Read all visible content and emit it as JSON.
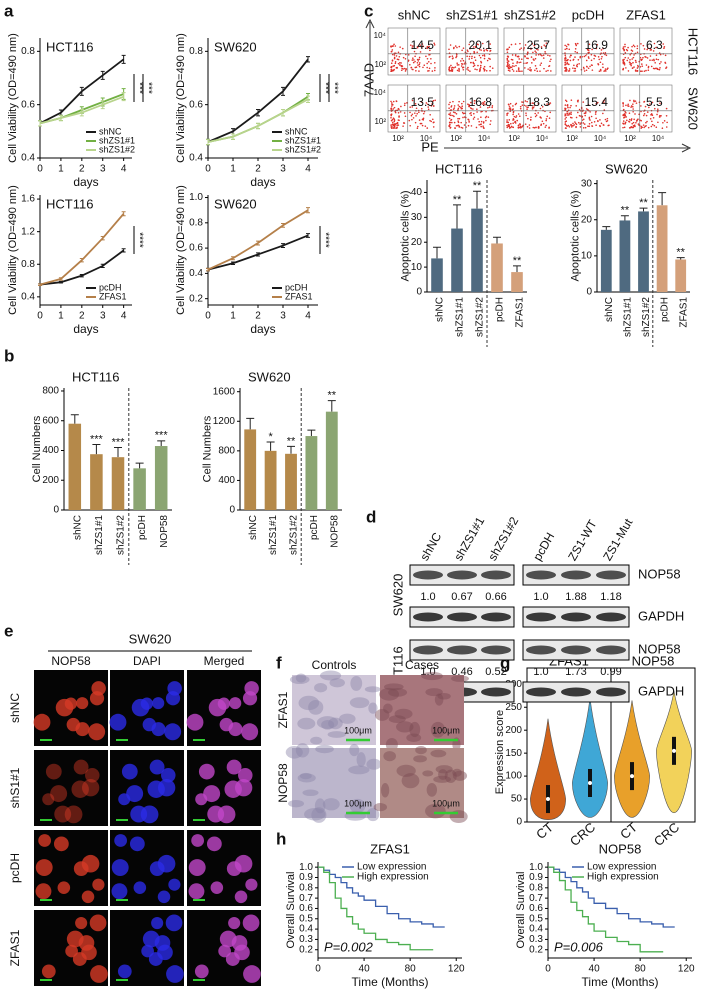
{
  "panel_labels": [
    "a",
    "b",
    "c",
    "d",
    "e",
    "f",
    "g",
    "h"
  ],
  "chart_data": [
    {
      "type": "line",
      "title": "HCT116",
      "y_label": "Cell Viability (OD=490 nm)",
      "x_label": "days",
      "x": [
        0,
        1,
        2,
        3,
        4
      ],
      "xlim": [
        0,
        4.4
      ],
      "xticks": [
        0,
        1,
        2,
        3,
        4
      ],
      "ylim": [
        0.4,
        0.85
      ],
      "yticks": [
        0.4,
        0.6,
        0.8
      ],
      "legend": "lower right",
      "annotations": [
        "***",
        "***"
      ],
      "series": [
        {
          "name": "shNC",
          "color": "#1a1a1a",
          "values": [
            0.53,
            0.57,
            0.65,
            0.71,
            0.77
          ],
          "errors": [
            0.01,
            0.01,
            0.015,
            0.015,
            0.015
          ]
        },
        {
          "name": "shZS1#1",
          "color": "#72b043",
          "values": [
            0.53,
            0.55,
            0.58,
            0.61,
            0.64
          ],
          "errors": [
            0.01,
            0.01,
            0.012,
            0.015,
            0.02
          ]
        },
        {
          "name": "shZS1#2",
          "color": "#b8d48c",
          "values": [
            0.53,
            0.55,
            0.57,
            0.6,
            0.63
          ],
          "errors": [
            0.01,
            0.01,
            0.012,
            0.015,
            0.015
          ]
        }
      ]
    },
    {
      "type": "line",
      "title": "SW620",
      "y_label": "Cell Viability (OD=490 nm)",
      "x_label": "days",
      "x": [
        0,
        1,
        2,
        3,
        4
      ],
      "xlim": [
        0,
        4.4
      ],
      "xticks": [
        0,
        1,
        2,
        3,
        4
      ],
      "ylim": [
        0.4,
        0.85
      ],
      "yticks": [
        0.4,
        0.6,
        0.8
      ],
      "legend": "lower right",
      "annotations": [
        "***",
        "***"
      ],
      "series": [
        {
          "name": "shNC",
          "color": "#1a1a1a",
          "values": [
            0.46,
            0.5,
            0.57,
            0.65,
            0.77
          ],
          "errors": [
            0.01,
            0.01,
            0.012,
            0.015,
            0.01
          ]
        },
        {
          "name": "shZS1#1",
          "color": "#72b043",
          "values": [
            0.46,
            0.48,
            0.52,
            0.57,
            0.63
          ],
          "errors": [
            0.01,
            0.01,
            0.01,
            0.012,
            0.012
          ]
        },
        {
          "name": "shZS1#2",
          "color": "#b8d48c",
          "values": [
            0.46,
            0.48,
            0.52,
            0.57,
            0.62
          ],
          "errors": [
            0.01,
            0.01,
            0.01,
            0.012,
            0.012
          ]
        }
      ]
    },
    {
      "type": "line",
      "title": "HCT116",
      "y_label": "Cell Viability (OD=490 nm)",
      "x_label": "days",
      "x": [
        0,
        1,
        2,
        3,
        4
      ],
      "xlim": [
        0,
        4.4
      ],
      "xticks": [
        0,
        1,
        2,
        3,
        4
      ],
      "ylim": [
        0.3,
        1.65
      ],
      "yticks": [
        0.4,
        0.8,
        1.2,
        1.6
      ],
      "legend": "lower right",
      "annotations": [
        "****"
      ],
      "series": [
        {
          "name": "pcDH",
          "color": "#1a1a1a",
          "values": [
            0.55,
            0.58,
            0.66,
            0.78,
            0.97
          ],
          "errors": [
            0.01,
            0.01,
            0.015,
            0.02,
            0.02
          ]
        },
        {
          "name": "ZFAS1",
          "color": "#b5804a",
          "values": [
            0.55,
            0.62,
            0.85,
            1.12,
            1.42
          ],
          "errors": [
            0.01,
            0.015,
            0.02,
            0.02,
            0.025
          ]
        }
      ]
    },
    {
      "type": "line",
      "title": "SW620",
      "y_label": "Cell Viability (OD=490 nm)",
      "x_label": "days",
      "x": [
        0,
        1,
        2,
        3,
        4
      ],
      "xlim": [
        0,
        4.4
      ],
      "xticks": [
        0,
        1,
        2,
        3,
        4
      ],
      "ylim": [
        0.15,
        1.02
      ],
      "yticks": [
        0.2,
        0.4,
        0.6,
        0.8,
        {
          "value": 1.0,
          "label": "1.0"
        }
      ],
      "legend": "lower right",
      "annotations": [
        "****"
      ],
      "series": [
        {
          "name": "pcDH",
          "color": "#1a1a1a",
          "values": [
            0.43,
            0.48,
            0.55,
            0.62,
            0.7
          ],
          "errors": [
            0.01,
            0.01,
            0.012,
            0.015,
            0.015
          ]
        },
        {
          "name": "ZFAS1",
          "color": "#b5804a",
          "values": [
            0.43,
            0.52,
            0.64,
            0.78,
            0.9
          ],
          "errors": [
            0.01,
            0.012,
            0.015,
            0.015,
            0.02
          ]
        }
      ]
    },
    {
      "type": "bar",
      "title": "HCT116",
      "y_label": "Cell Numbers",
      "categories": [
        "shNC",
        "shZS1#1",
        "shZS1#2",
        "pcDH",
        "NOP58"
      ],
      "values": [
        580,
        375,
        355,
        280,
        430
      ],
      "errors": [
        60,
        65,
        65,
        35,
        35
      ],
      "colors": [
        "#b5894a",
        "#b5894a",
        "#b5894a",
        "#8ba572",
        "#8ba572"
      ],
      "significance": [
        null,
        "***",
        "***",
        null,
        "***"
      ],
      "ylim": [
        0,
        820
      ],
      "yticks": [
        0,
        200,
        400,
        600,
        800
      ]
    },
    {
      "type": "bar",
      "title": "SW620",
      "y_label": "Cell Numbers",
      "categories": [
        "shNC",
        "shZS1#1",
        "shZS1#2",
        "pcDH",
        "NOP58"
      ],
      "values": [
        1090,
        800,
        760,
        1000,
        1330
      ],
      "errors": [
        150,
        120,
        100,
        80,
        150
      ],
      "colors": [
        "#b5894a",
        "#b5894a",
        "#b5894a",
        "#8ba572",
        "#8ba572"
      ],
      "significance": [
        null,
        "*",
        "**",
        null,
        "**"
      ],
      "ylim": [
        0,
        1650
      ],
      "yticks": [
        0,
        400,
        800,
        1200,
        1600
      ]
    },
    {
      "type": "bar",
      "title": "HCT116",
      "y_label": "Apoptotic cells (%)",
      "categories": [
        "shNC",
        "shZS1#1",
        "shZS1#2",
        "pcDH",
        "ZFAS1"
      ],
      "values": [
        13.5,
        25.5,
        33.5,
        19.5,
        8
      ],
      "errors": [
        4.5,
        9.5,
        7,
        2.5,
        2.5
      ],
      "colors": [
        "#4f6a80",
        "#4f6a80",
        "#4f6a80",
        "#d4a07a",
        "#d4a07a"
      ],
      "significance": [
        null,
        "**",
        "**",
        null,
        "**"
      ],
      "ylim": [
        0,
        45
      ],
      "yticks": [
        0,
        10,
        20,
        30,
        40
      ]
    },
    {
      "type": "bar",
      "title": "SW620",
      "y_label": "Apoptotic cells (%)",
      "categories": [
        "shNC",
        "shZS1#1",
        "shZS1#2",
        "pcDH",
        "ZFAS1"
      ],
      "values": [
        17.2,
        19.8,
        22.3,
        24,
        9
      ],
      "errors": [
        0.9,
        1.3,
        0.9,
        3.5,
        0.5
      ],
      "colors": [
        "#4f6a80",
        "#4f6a80",
        "#4f6a80",
        "#d4a07a",
        "#d4a07a"
      ],
      "significance": [
        null,
        "**",
        "**",
        null,
        "**"
      ],
      "ylim": [
        0,
        31
      ],
      "yticks": [
        0,
        10,
        20,
        30
      ]
    },
    {
      "type": "violin",
      "y_label": "Expression score",
      "groups": [
        "ZFAS1",
        "NOP58"
      ],
      "categories": [
        "CT",
        "CRC",
        "CT",
        "CRC"
      ],
      "values": [
        50,
        85,
        100,
        155
      ],
      "min": [
        5,
        10,
        10,
        20
      ],
      "max": [
        225,
        270,
        265,
        285
      ],
      "colors": [
        "#d0621a",
        "#3fa7d6",
        "#e8a02a",
        "#f2d25a"
      ],
      "ylim": [
        0,
        305
      ],
      "yticks": [
        0,
        50,
        100,
        150,
        200,
        250,
        300
      ]
    },
    {
      "type": "step",
      "title": "ZFAS1",
      "y_label": "Overall Survival",
      "x_label": "Time (Months)",
      "annotation": "P=0.002",
      "xlim": [
        0,
        125
      ],
      "xticks": [
        0,
        40,
        80,
        120
      ],
      "ylim": [
        0.12,
        1.05
      ],
      "yticks": [
        0.2,
        0.3,
        0.4,
        0.5,
        0.6,
        0.7,
        0.8,
        0.9,
        {
          "value": 1.0,
          "label": "1.0"
        }
      ],
      "legend": "upper right",
      "series": [
        {
          "name": "Low expression",
          "color": "#3a5fad",
          "x": [
            0,
            5,
            10,
            15,
            20,
            25,
            30,
            35,
            40,
            50,
            60,
            70,
            80,
            90,
            100,
            110
          ],
          "values": [
            1,
            0.97,
            0.93,
            0.9,
            0.85,
            0.8,
            0.75,
            0.72,
            0.68,
            0.62,
            0.55,
            0.5,
            0.47,
            0.45,
            0.42,
            0.42
          ]
        },
        {
          "name": "High expression",
          "color": "#4caf50",
          "x": [
            0,
            5,
            10,
            15,
            20,
            25,
            30,
            35,
            40,
            50,
            60,
            70,
            80,
            90,
            100
          ],
          "values": [
            1,
            0.95,
            0.85,
            0.7,
            0.6,
            0.52,
            0.45,
            0.4,
            0.36,
            0.3,
            0.27,
            0.25,
            0.2,
            0.2,
            0.2
          ]
        }
      ]
    },
    {
      "type": "step",
      "title": "NOP58",
      "y_label": "Overall Survival",
      "x_label": "Time (Months)",
      "annotation": "P=0.006",
      "xlim": [
        0,
        125
      ],
      "xticks": [
        0,
        40,
        80,
        120
      ],
      "ylim": [
        0.12,
        1.05
      ],
      "yticks": [
        0.2,
        0.3,
        0.4,
        0.5,
        0.6,
        0.7,
        0.8,
        0.9,
        {
          "value": 1.0,
          "label": "1.0"
        }
      ],
      "legend": "upper right",
      "series": [
        {
          "name": "Low expression",
          "color": "#3a5fad",
          "x": [
            0,
            5,
            10,
            15,
            20,
            25,
            30,
            35,
            40,
            50,
            60,
            70,
            80,
            90,
            100,
            110
          ],
          "values": [
            1,
            0.98,
            0.95,
            0.9,
            0.86,
            0.8,
            0.76,
            0.7,
            0.65,
            0.6,
            0.55,
            0.5,
            0.47,
            0.45,
            0.42,
            0.42
          ]
        },
        {
          "name": "High expression",
          "color": "#4caf50",
          "x": [
            0,
            5,
            10,
            15,
            20,
            25,
            30,
            35,
            40,
            50,
            60,
            70,
            80,
            90,
            100
          ],
          "values": [
            1,
            0.95,
            0.87,
            0.78,
            0.66,
            0.58,
            0.52,
            0.45,
            0.38,
            0.32,
            0.28,
            0.25,
            0.18,
            0.18,
            0.18
          ]
        }
      ]
    }
  ],
  "flow_cytometry": {
    "columns": [
      "shNC",
      "shZS1#1",
      "shZS1#2",
      "pcDH",
      "ZFAS1"
    ],
    "rows": [
      {
        "name": "HCT116",
        "values": [
          "14.5",
          "20.1",
          "25.7",
          "16.9",
          "6.3"
        ]
      },
      {
        "name": "SW620",
        "values": [
          "13.5",
          "16.8",
          "18.3",
          "15.4",
          "5.5"
        ]
      }
    ],
    "y_label": "7AAD",
    "x_label": "PE",
    "axis_ticks": [
      "10²",
      "10⁴"
    ]
  },
  "western_blot": {
    "columns": [
      "shNC",
      "shZS1#1",
      "shZS1#2",
      "pcDH",
      "ZS1-WT",
      "ZS1-Mut"
    ],
    "blocks": [
      {
        "cell_line": "SW620",
        "target": "NOP58",
        "ratios": [
          "1.0",
          "0.67",
          "0.66",
          "1.0",
          "1.88",
          "1.18"
        ],
        "control": "GAPDH"
      },
      {
        "cell_line": "HCT116",
        "target": "NOP58",
        "ratios": [
          "1.0",
          "0.46",
          "0.52",
          "1.0",
          "1.73",
          "0.99"
        ],
        "control": "GAPDH"
      }
    ]
  },
  "microscopy": {
    "title": "SW620",
    "columns": [
      "NOP58",
      "DAPI",
      "Merged"
    ],
    "rows": [
      "shNC",
      "shS1#1",
      "pcDH",
      "ZFAS1"
    ]
  },
  "ihc": {
    "columns": [
      "Controls",
      "Cases"
    ],
    "rows": [
      "ZFAS1",
      "NOP58"
    ],
    "scale_bar": "100μm"
  }
}
